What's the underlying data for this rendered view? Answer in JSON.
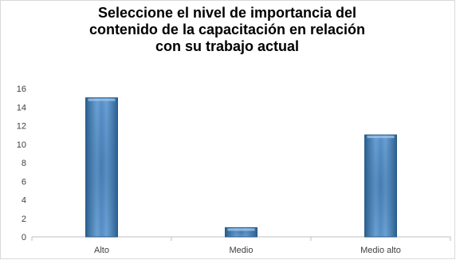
{
  "chart_data": {
    "type": "bar",
    "title": "Seleccione el nivel de importancia del contenido de la capacitación en relación con su trabajo actual",
    "title_lines": [
      "Seleccione el nivel de importancia del",
      "contenido de la capacitación en relación",
      "con su trabajo actual"
    ],
    "categories": [
      "Alto",
      "Medio",
      "Medio alto"
    ],
    "values": [
      15,
      1,
      11
    ],
    "ylim": [
      0,
      16
    ],
    "yticks": [
      0,
      2,
      4,
      6,
      8,
      10,
      12,
      14,
      16
    ],
    "xlabel": "",
    "ylabel": "",
    "legend": "none",
    "grid": false,
    "colors": {
      "bar_dark": "#2a5f8f",
      "bar_light": "#6fa5d9",
      "bar_mid": "#3d7ab8",
      "axis": "#bfbfbf"
    }
  }
}
